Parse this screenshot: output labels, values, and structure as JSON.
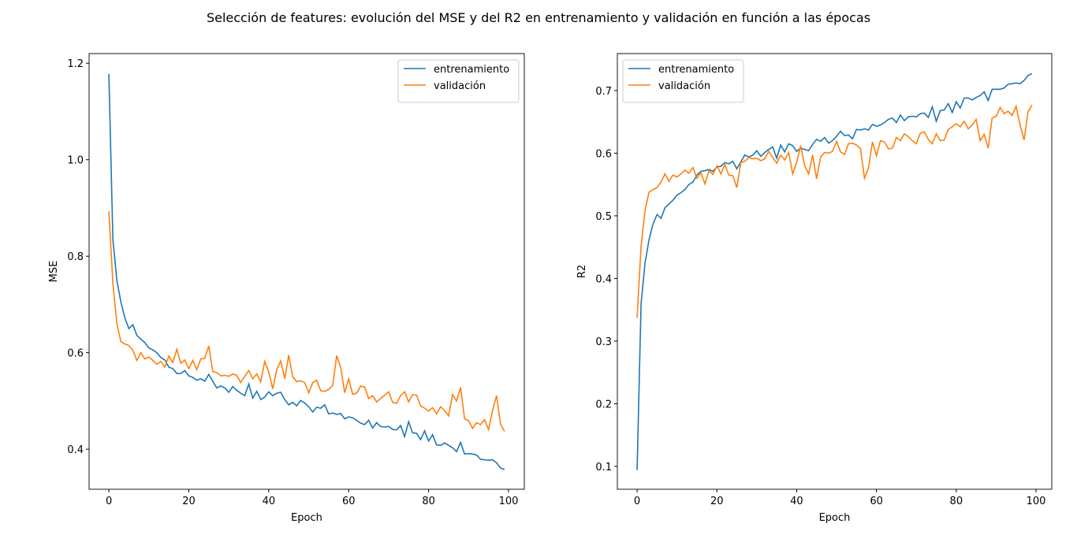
{
  "title": "Selección de features: evolución del MSE y del R2 en entrenamiento y validación en función a las épocas",
  "chart_data": [
    {
      "type": "line",
      "xlabel": "Epoch",
      "ylabel": "MSE",
      "legend": "upper right",
      "grid": false,
      "x": [
        0,
        1,
        2,
        3,
        4,
        5,
        6,
        7,
        8,
        9,
        10,
        11,
        12,
        13,
        14,
        15,
        16,
        17,
        18,
        19,
        20,
        21,
        22,
        23,
        24,
        25,
        26,
        27,
        28,
        29,
        30,
        31,
        32,
        33,
        34,
        35,
        36,
        37,
        38,
        39,
        40,
        41,
        42,
        43,
        44,
        45,
        46,
        47,
        48,
        49,
        50,
        51,
        52,
        53,
        54,
        55,
        56,
        57,
        58,
        59,
        60,
        61,
        62,
        63,
        64,
        65,
        66,
        67,
        68,
        69,
        70,
        71,
        72,
        73,
        74,
        75,
        76,
        77,
        78,
        79,
        80,
        81,
        82,
        83,
        84,
        85,
        86,
        87,
        88,
        89,
        90,
        91,
        92,
        93,
        94,
        95,
        96,
        97,
        98,
        99
      ],
      "xlim": [
        -4.95,
        103.95
      ],
      "xticks": [
        0,
        20,
        40,
        60,
        80,
        100
      ],
      "ylim": [
        0.317,
        1.22
      ],
      "yticks": [
        0.4,
        0.6,
        0.8,
        {
          "value": 1,
          "label": "1.0"
        },
        1.2
      ],
      "series": [
        {
          "name": "entrenamiento",
          "color": "#1f77b4",
          "values": [
            1.178,
            0.835,
            0.75,
            0.705,
            0.672,
            0.65,
            0.658,
            0.636,
            0.628,
            0.621,
            0.61,
            0.606,
            0.6,
            0.59,
            0.585,
            0.57,
            0.567,
            0.557,
            0.557,
            0.563,
            0.552,
            0.549,
            0.543,
            0.546,
            0.541,
            0.555,
            0.541,
            0.527,
            0.531,
            0.527,
            0.518,
            0.53,
            0.522,
            0.516,
            0.511,
            0.535,
            0.506,
            0.52,
            0.503,
            0.508,
            0.519,
            0.511,
            0.516,
            0.518,
            0.503,
            0.492,
            0.497,
            0.49,
            0.501,
            0.496,
            0.488,
            0.477,
            0.487,
            0.485,
            0.492,
            0.473,
            0.475,
            0.472,
            0.474,
            0.463,
            0.467,
            0.465,
            0.46,
            0.454,
            0.451,
            0.46,
            0.444,
            0.455,
            0.447,
            0.446,
            0.447,
            0.441,
            0.44,
            0.449,
            0.426,
            0.457,
            0.434,
            0.433,
            0.42,
            0.438,
            0.417,
            0.43,
            0.409,
            0.408,
            0.413,
            0.408,
            0.403,
            0.395,
            0.414,
            0.39,
            0.391,
            0.39,
            0.388,
            0.379,
            0.378,
            0.377,
            0.378,
            0.372,
            0.361,
            0.358
          ]
        },
        {
          "name": "validación",
          "color": "#ff7f0e",
          "values": [
            0.893,
            0.745,
            0.66,
            0.623,
            0.618,
            0.615,
            0.605,
            0.584,
            0.6,
            0.587,
            0.591,
            0.584,
            0.576,
            0.582,
            0.57,
            0.593,
            0.58,
            0.607,
            0.578,
            0.585,
            0.567,
            0.584,
            0.565,
            0.587,
            0.589,
            0.614,
            0.561,
            0.559,
            0.552,
            0.553,
            0.551,
            0.556,
            0.553,
            0.538,
            0.551,
            0.563,
            0.546,
            0.556,
            0.54,
            0.582,
            0.56,
            0.525,
            0.565,
            0.583,
            0.546,
            0.595,
            0.55,
            0.54,
            0.542,
            0.538,
            0.517,
            0.538,
            0.543,
            0.521,
            0.52,
            0.524,
            0.532,
            0.594,
            0.57,
            0.517,
            0.546,
            0.514,
            0.516,
            0.531,
            0.529,
            0.505,
            0.511,
            0.498,
            0.505,
            0.512,
            0.519,
            0.497,
            0.495,
            0.511,
            0.519,
            0.498,
            0.513,
            0.512,
            0.49,
            0.485,
            0.479,
            0.486,
            0.473,
            0.488,
            0.48,
            0.469,
            0.513,
            0.5,
            0.528,
            0.463,
            0.459,
            0.443,
            0.455,
            0.451,
            0.461,
            0.441,
            0.48,
            0.511,
            0.452,
            0.437
          ]
        }
      ]
    },
    {
      "type": "line",
      "xlabel": "Epoch",
      "ylabel": "R2",
      "legend": "upper left",
      "grid": false,
      "x": [
        0,
        1,
        2,
        3,
        4,
        5,
        6,
        7,
        8,
        9,
        10,
        11,
        12,
        13,
        14,
        15,
        16,
        17,
        18,
        19,
        20,
        21,
        22,
        23,
        24,
        25,
        26,
        27,
        28,
        29,
        30,
        31,
        32,
        33,
        34,
        35,
        36,
        37,
        38,
        39,
        40,
        41,
        42,
        43,
        44,
        45,
        46,
        47,
        48,
        49,
        50,
        51,
        52,
        53,
        54,
        55,
        56,
        57,
        58,
        59,
        60,
        61,
        62,
        63,
        64,
        65,
        66,
        67,
        68,
        69,
        70,
        71,
        72,
        73,
        74,
        75,
        76,
        77,
        78,
        79,
        80,
        81,
        82,
        83,
        84,
        85,
        86,
        87,
        88,
        89,
        90,
        91,
        92,
        93,
        94,
        95,
        96,
        97,
        98,
        99
      ],
      "xlim": [
        -4.95,
        103.95
      ],
      "xticks": [
        0,
        20,
        40,
        60,
        80,
        100
      ],
      "ylim": [
        0.0635,
        0.759
      ],
      "yticks": [
        0.1,
        0.2,
        0.3,
        0.4,
        0.5,
        0.6,
        0.7
      ],
      "series": [
        {
          "name": "entrenamiento",
          "color": "#1f77b4",
          "values": [
            0.094,
            0.36,
            0.425,
            0.462,
            0.487,
            0.502,
            0.496,
            0.513,
            0.519,
            0.525,
            0.533,
            0.537,
            0.542,
            0.55,
            0.554,
            0.565,
            0.571,
            0.572,
            0.574,
            0.571,
            0.578,
            0.579,
            0.585,
            0.583,
            0.587,
            0.575,
            0.586,
            0.597,
            0.594,
            0.597,
            0.604,
            0.595,
            0.601,
            0.606,
            0.61,
            0.592,
            0.613,
            0.602,
            0.615,
            0.612,
            0.603,
            0.608,
            0.606,
            0.604,
            0.614,
            0.622,
            0.619,
            0.625,
            0.616,
            0.62,
            0.627,
            0.635,
            0.628,
            0.629,
            0.623,
            0.638,
            0.637,
            0.639,
            0.637,
            0.646,
            0.643,
            0.645,
            0.649,
            0.654,
            0.656,
            0.649,
            0.661,
            0.652,
            0.658,
            0.659,
            0.658,
            0.663,
            0.664,
            0.657,
            0.674,
            0.651,
            0.668,
            0.669,
            0.679,
            0.665,
            0.682,
            0.672,
            0.688,
            0.688,
            0.685,
            0.689,
            0.692,
            0.698,
            0.684,
            0.702,
            0.702,
            0.702,
            0.704,
            0.71,
            0.711,
            0.712,
            0.711,
            0.716,
            0.724,
            0.727
          ]
        },
        {
          "name": "validación",
          "color": "#ff7f0e",
          "values": [
            0.337,
            0.452,
            0.509,
            0.538,
            0.542,
            0.545,
            0.554,
            0.567,
            0.555,
            0.565,
            0.562,
            0.567,
            0.573,
            0.568,
            0.577,
            0.56,
            0.569,
            0.551,
            0.572,
            0.566,
            0.58,
            0.567,
            0.582,
            0.565,
            0.564,
            0.545,
            0.585,
            0.587,
            0.593,
            0.591,
            0.592,
            0.588,
            0.591,
            0.603,
            0.593,
            0.584,
            0.597,
            0.589,
            0.601,
            0.567,
            0.585,
            0.612,
            0.58,
            0.567,
            0.597,
            0.559,
            0.594,
            0.601,
            0.6,
            0.603,
            0.619,
            0.602,
            0.598,
            0.615,
            0.616,
            0.613,
            0.607,
            0.56,
            0.576,
            0.618,
            0.596,
            0.62,
            0.618,
            0.607,
            0.608,
            0.625,
            0.62,
            0.631,
            0.626,
            0.62,
            0.615,
            0.632,
            0.634,
            0.622,
            0.615,
            0.631,
            0.62,
            0.621,
            0.638,
            0.642,
            0.647,
            0.642,
            0.651,
            0.639,
            0.645,
            0.654,
            0.62,
            0.63,
            0.608,
            0.656,
            0.659,
            0.673,
            0.663,
            0.667,
            0.66,
            0.675,
            0.645,
            0.621,
            0.666,
            0.677
          ]
        }
      ]
    }
  ]
}
